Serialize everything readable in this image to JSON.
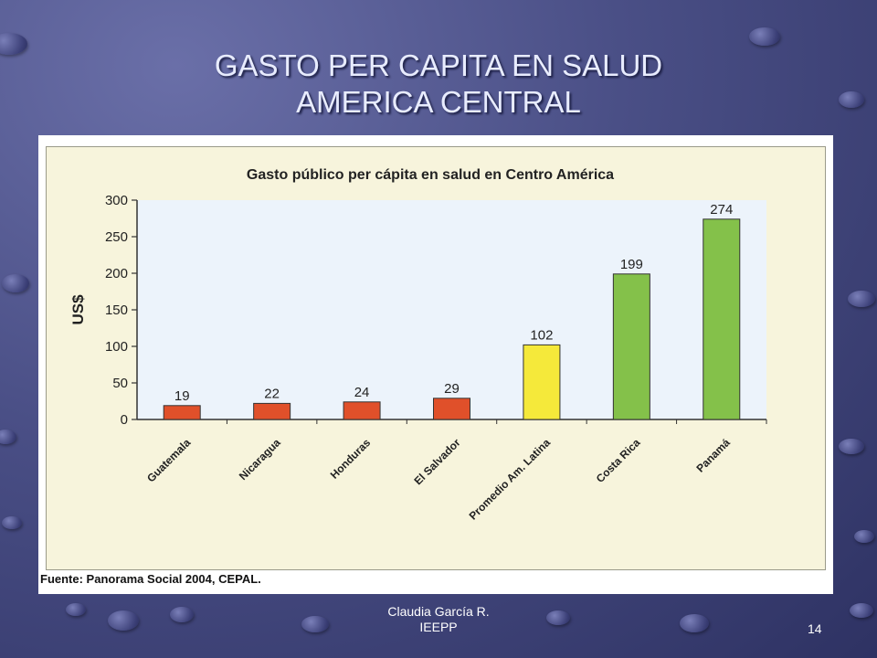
{
  "slide": {
    "title_line1": "GASTO PER CAPITA EN SALUD",
    "title_line2": "AMERICA CENTRAL",
    "footer_line1": "Claudia García R.",
    "footer_line2": "IEEPP",
    "page_number": "14"
  },
  "chart_data": {
    "type": "bar",
    "title": "Gasto público per cápita en salud en Centro América",
    "ylabel": "US$",
    "xlabel": "",
    "categories": [
      "Guatemala",
      "Nicaragua",
      "Honduras",
      "El Salvador",
      "Promedio Am. Latina",
      "Costa Rica",
      "Panamá"
    ],
    "values": [
      19,
      22,
      24,
      29,
      102,
      199,
      274
    ],
    "data_labels": [
      "19",
      "22",
      "24",
      "29",
      "102",
      "199",
      "274"
    ],
    "bar_colors": [
      "#e0502a",
      "#e0502a",
      "#e0502a",
      "#e0502a",
      "#f5e93a",
      "#84c14a",
      "#84c14a"
    ],
    "ylim": [
      0,
      300
    ],
    "yticks": [
      0,
      50,
      100,
      150,
      200,
      250,
      300
    ],
    "grid": false,
    "source": "Fuente: Panorama Social 2004, CEPAL."
  }
}
